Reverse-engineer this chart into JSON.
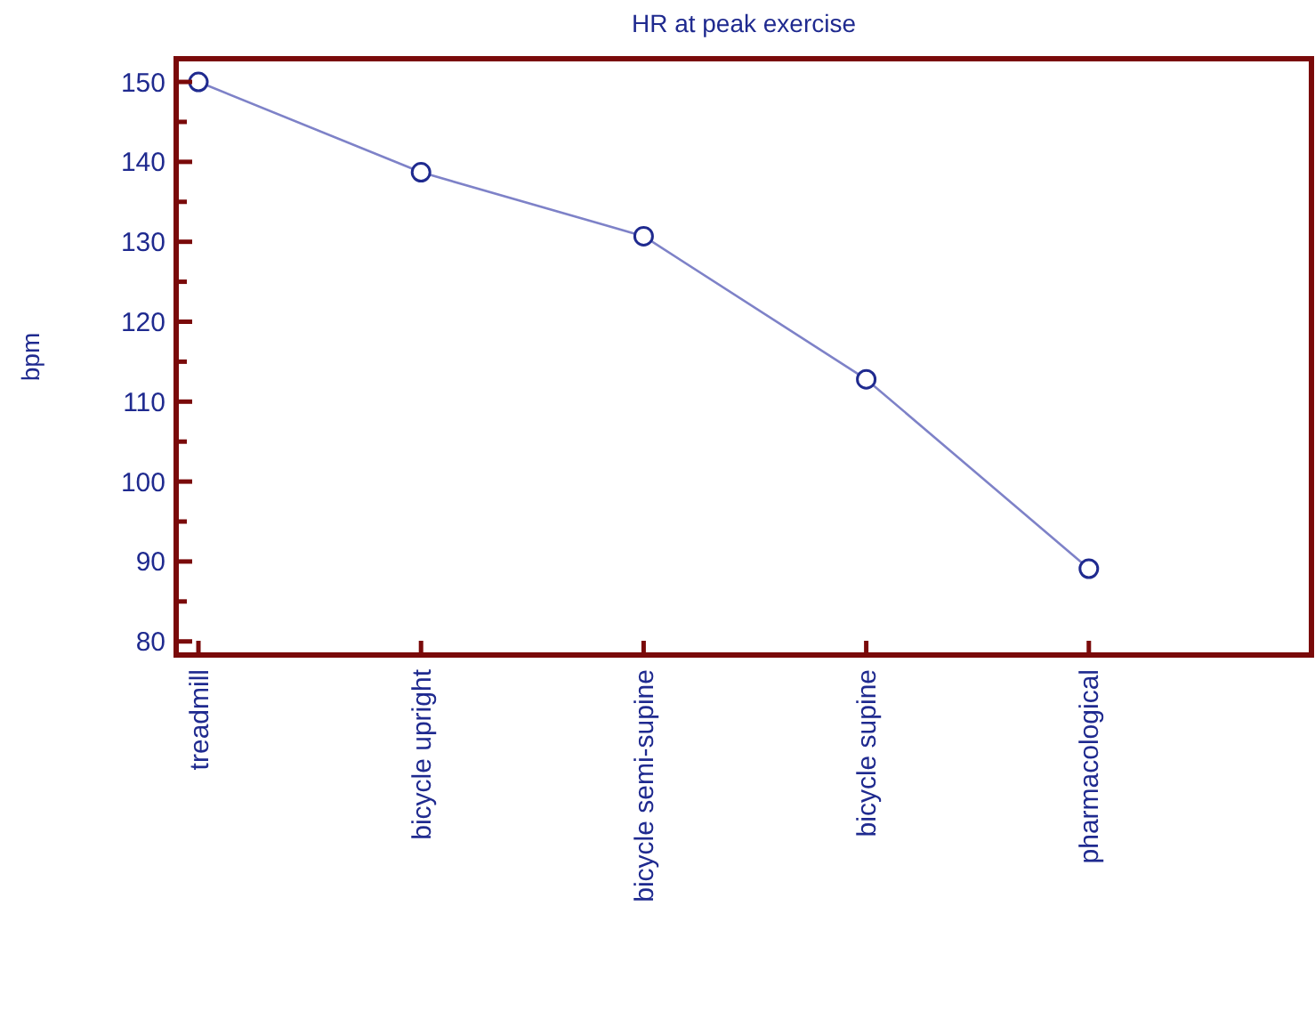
{
  "chart_data": {
    "type": "line",
    "title": "HR at peak exercise",
    "ylabel": "bpm",
    "categories": [
      "treadmill",
      "bicycle upright",
      "bicycle semi-supine",
      "bicycle supine",
      "pharmacological"
    ],
    "series": [
      {
        "color": "#7e82c8",
        "values": [
          150,
          138.7,
          130.7,
          112.8,
          89.1
        ]
      }
    ],
    "ylim": [
      78.3,
      152.9
    ],
    "yticks": [
      80,
      {
        "value": 85,
        "label": null
      },
      90,
      {
        "value": 95,
        "label": null
      },
      100,
      {
        "value": 105,
        "label": null
      },
      110,
      {
        "value": 115,
        "label": null
      },
      120,
      {
        "value": 125,
        "label": null
      },
      130,
      {
        "value": 135,
        "label": null
      },
      140,
      {
        "value": 145,
        "label": null
      },
      150
    ],
    "grid": false,
    "marker": "circle",
    "line_style": "solid"
  }
}
